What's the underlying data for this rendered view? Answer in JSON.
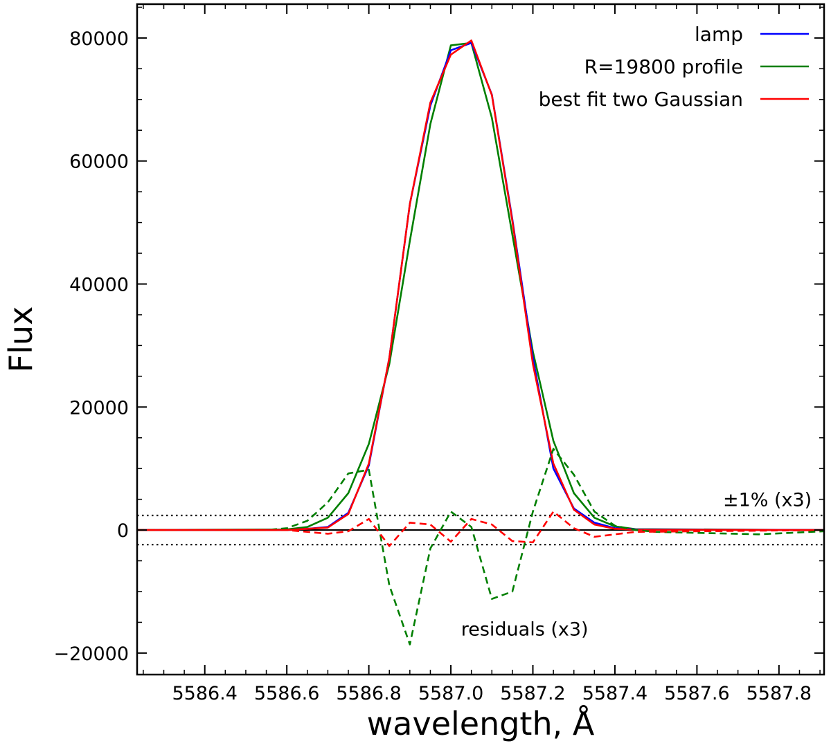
{
  "chart_data": {
    "type": "line",
    "xlabel": "wavelength, Å",
    "ylabel": "Flux",
    "xlim": [
      5586.235,
      5587.91
    ],
    "ylim": [
      -23500,
      85500
    ],
    "x_ticks": [
      5586.4,
      5586.6,
      5586.8,
      5587.0,
      5587.2,
      5587.4,
      5587.6,
      5587.8
    ],
    "x_tick_labels": [
      "5586.4",
      "5586.6",
      "5586.8",
      "5587.0",
      "5587.2",
      "5587.4",
      "5587.6",
      "5587.8"
    ],
    "y_ticks": [
      -20000,
      0,
      20000,
      40000,
      60000,
      80000
    ],
    "y_tick_labels": [
      "−20000",
      "0",
      "20000",
      "40000",
      "60000",
      "80000"
    ],
    "legend_position": "top-right",
    "series": [
      {
        "name": "lamp",
        "color": "#0000ff",
        "style": "solid",
        "x": [
          5586.235,
          5586.6,
          5586.65,
          5586.7,
          5586.75,
          5586.8,
          5586.85,
          5586.9,
          5586.95,
          5587.0,
          5587.05,
          5587.1,
          5587.15,
          5587.2,
          5587.25,
          5587.3,
          5587.35,
          5587.4,
          5587.45,
          5587.91
        ],
        "y": [
          0,
          0,
          200,
          500,
          2800,
          10500,
          28000,
          53000,
          69000,
          78000,
          79200,
          70800,
          50500,
          28000,
          10000,
          3500,
          1200,
          300,
          100,
          0
        ]
      },
      {
        "name": "R=19800 profile",
        "color": "#007f00",
        "style": "solid",
        "x": [
          5586.235,
          5586.6,
          5586.65,
          5586.7,
          5586.75,
          5586.8,
          5586.85,
          5586.9,
          5586.95,
          5587.0,
          5587.05,
          5587.1,
          5587.15,
          5587.2,
          5587.25,
          5587.3,
          5587.35,
          5587.4,
          5587.45,
          5587.91
        ],
        "y": [
          0,
          100,
          500,
          2000,
          6000,
          14000,
          27000,
          47000,
          66000,
          78800,
          79200,
          67000,
          48000,
          29000,
          14500,
          6000,
          2000,
          600,
          150,
          0
        ]
      },
      {
        "name": "best fit two Gaussian",
        "color": "#ff0000",
        "style": "solid",
        "x": [
          5586.235,
          5586.6,
          5586.65,
          5586.7,
          5586.75,
          5586.8,
          5586.85,
          5586.9,
          5586.95,
          5587.0,
          5587.05,
          5587.1,
          5587.15,
          5587.2,
          5587.25,
          5587.3,
          5587.35,
          5587.4,
          5587.45,
          5587.91
        ],
        "y": [
          0,
          0,
          200,
          400,
          2600,
          10800,
          28000,
          53000,
          69500,
          77300,
          79600,
          70700,
          50200,
          27000,
          10800,
          3300,
          900,
          200,
          50,
          0
        ]
      },
      {
        "name": "R=19800 residuals (x3)",
        "color": "#007f00",
        "style": "dashed",
        "legend": false,
        "x": [
          5586.235,
          5586.55,
          5586.6,
          5586.65,
          5586.7,
          5586.75,
          5586.8,
          5586.85,
          5586.9,
          5586.95,
          5587.0,
          5587.05,
          5587.1,
          5587.15,
          5587.2,
          5587.25,
          5587.3,
          5587.35,
          5587.4,
          5587.45,
          5587.5,
          5587.75,
          5587.91
        ],
        "y": [
          0,
          0,
          300,
          1500,
          4500,
          9200,
          9800,
          -9000,
          -18600,
          -3000,
          3000,
          500,
          -11200,
          -10000,
          3000,
          13200,
          9000,
          3000,
          700,
          0,
          -300,
          -700,
          -200
        ]
      },
      {
        "name": "two Gaussian residuals (x3)",
        "color": "#ff0000",
        "style": "dashed",
        "legend": false,
        "x": [
          5586.235,
          5586.6,
          5586.65,
          5586.7,
          5586.75,
          5586.8,
          5586.85,
          5586.9,
          5586.95,
          5587.0,
          5587.05,
          5587.1,
          5587.15,
          5587.2,
          5587.25,
          5587.3,
          5587.35,
          5587.4,
          5587.45,
          5587.91
        ],
        "y": [
          0,
          0,
          -300,
          -600,
          -200,
          1800,
          -2600,
          1200,
          900,
          -1900,
          1800,
          900,
          -1800,
          -2000,
          3000,
          300,
          -1100,
          -700,
          -300,
          0
        ]
      }
    ],
    "reference_lines": [
      {
        "y": 0,
        "style": "solid",
        "color": "#000000"
      },
      {
        "y": 2370,
        "style": "dotted",
        "color": "#000000"
      },
      {
        "y": -2370,
        "style": "dotted",
        "color": "#000000"
      }
    ],
    "annotations": [
      {
        "text": "±1% (x3)",
        "x": 5587.88,
        "y": 5000,
        "anchor": "end"
      },
      {
        "text": "residuals (x3)",
        "x": 5587.18,
        "y": -16000,
        "anchor": "middle"
      }
    ]
  }
}
